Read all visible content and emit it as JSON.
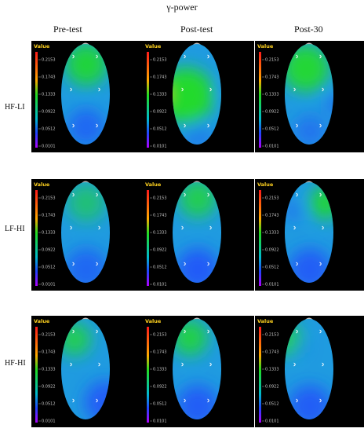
{
  "figure": {
    "title": "γ-power"
  },
  "columns": [
    "Pre-test",
    "Post-test",
    "Post-30"
  ],
  "rows": [
    {
      "label": "HF-LI",
      "maps": [
        "pre",
        "post-hot",
        "post30"
      ]
    },
    {
      "label": "LF-HI",
      "maps": [
        "pre-b",
        "post-b",
        "post30-b"
      ]
    },
    {
      "label": "HF-HI",
      "maps": [
        "pre-c",
        "post-c",
        "post30-c"
      ]
    }
  ],
  "colorbar": {
    "title": "Value",
    "ticks": [
      "0.2153",
      "0.1743",
      "0.1333",
      "0.0922",
      "0.0512",
      "0.0101"
    ]
  },
  "colors": {
    "background_panel": "#000000",
    "scale_high": "#ff1a1a",
    "scale_mid": "#22dd22",
    "scale_low": "#2244ff",
    "scale_min": "#b000ff",
    "label_yellow": "#ffd21f"
  }
}
